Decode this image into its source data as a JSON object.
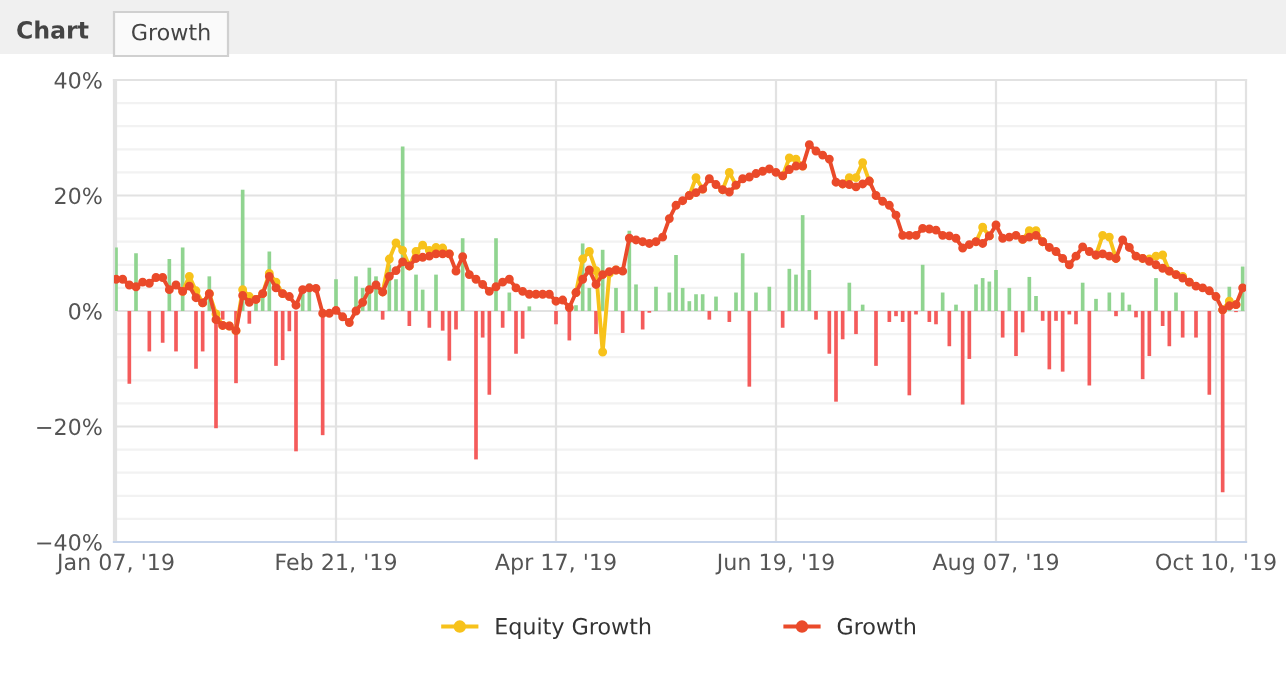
{
  "chart_data": {
    "type": "line",
    "annotations": [
      "Chart",
      "Growth"
    ],
    "categories": [
      "Jan 07, '19",
      null,
      null,
      null,
      null,
      null,
      null,
      null,
      null,
      null,
      null,
      null,
      null,
      null,
      null,
      null,
      null,
      null,
      null,
      null,
      null,
      null,
      null,
      null,
      null,
      null,
      null,
      null,
      null,
      null,
      null,
      null,
      null,
      "Feb 21, '19",
      null,
      null,
      null,
      null,
      null,
      null,
      null,
      null,
      null,
      null,
      null,
      null,
      null,
      null,
      null,
      null,
      null,
      null,
      null,
      null,
      null,
      null,
      null,
      null,
      null,
      null,
      null,
      null,
      null,
      null,
      null,
      null,
      "Apr 17, '19",
      null,
      null,
      null,
      null,
      null,
      null,
      null,
      null,
      null,
      null,
      null,
      null,
      null,
      null,
      null,
      null,
      null,
      null,
      null,
      null,
      null,
      null,
      null,
      null,
      null,
      null,
      null,
      null,
      null,
      null,
      null,
      null,
      "Jun 19, '19",
      null,
      null,
      null,
      null,
      null,
      null,
      null,
      null,
      null,
      null,
      null,
      null,
      null,
      null,
      null,
      null,
      null,
      null,
      null,
      null,
      null,
      null,
      null,
      null,
      null,
      null,
      null,
      null,
      null,
      null,
      null,
      null,
      "Aug 07, '19",
      null,
      null,
      null,
      null,
      null,
      null,
      null,
      null,
      null,
      null,
      null,
      null,
      null,
      null,
      null,
      null,
      null,
      null,
      null,
      null,
      null,
      null,
      null,
      null,
      null,
      null,
      null,
      null,
      null,
      null,
      null,
      null,
      "Oct 10, '19",
      null,
      null,
      null,
      null
    ],
    "series": [
      {
        "type": "bar",
        "color": "#90d490",
        "values": [
          11,
          null,
          null,
          10,
          null,
          null,
          null,
          null,
          9,
          null,
          11,
          null,
          null,
          null,
          6,
          null,
          null,
          null,
          null,
          21,
          null,
          2,
          3,
          10.3,
          null,
          null,
          null,
          null,
          3.5,
          4.8,
          null,
          null,
          null,
          5.5,
          null,
          null,
          6,
          4,
          7.5,
          6,
          null,
          8,
          5.5,
          28.5,
          null,
          6.3,
          3.7,
          null,
          6.3,
          null,
          null,
          null,
          12.6,
          null,
          null,
          null,
          null,
          12.6,
          null,
          3.2,
          null,
          null,
          0.8,
          null,
          null,
          null,
          null,
          null,
          null,
          1.0,
          11.7,
          4,
          null,
          10.6,
          null,
          4,
          null,
          13.9,
          4.6,
          null,
          null,
          4.2,
          null,
          3.2,
          9.7,
          4,
          1.7,
          2.9,
          2.9,
          null,
          2.5,
          null,
          null,
          3.2,
          10,
          null,
          3.2,
          null,
          4.2,
          null,
          null,
          7.3,
          6.3,
          16.6,
          7.1,
          null,
          null,
          null,
          null,
          null,
          4.9,
          null,
          1.1,
          null,
          null,
          null,
          null,
          null,
          null,
          null,
          null,
          8,
          null,
          null,
          3.2,
          null,
          1.1,
          null,
          null,
          4.6,
          5.7,
          5.1,
          7.1,
          null,
          4,
          null,
          null,
          5.9,
          2.6,
          null,
          null,
          null,
          null,
          null,
          null,
          4.9,
          null,
          2.1,
          null,
          3.2,
          null,
          3.2,
          1.1,
          null,
          null,
          null,
          5.7,
          null,
          null,
          3.2,
          null,
          null,
          null,
          null,
          null,
          null,
          null,
          4.2,
          null,
          7.7
        ]
      },
      {
        "type": "bar",
        "color": "#f45b5b",
        "values": [
          null,
          null,
          -12.6,
          null,
          null,
          -7,
          null,
          -5.5,
          null,
          -7,
          null,
          null,
          -10,
          -7,
          null,
          -20.3,
          -1.5,
          null,
          -12.5,
          null,
          -2.2,
          null,
          null,
          null,
          -9.5,
          -8.5,
          -3.5,
          -24.3,
          null,
          null,
          null,
          -21.5,
          null,
          null,
          null,
          null,
          null,
          null,
          null,
          null,
          -1.5,
          null,
          null,
          null,
          -2.6,
          null,
          null,
          -2.9,
          null,
          -3.4,
          -8.6,
          -3.2,
          null,
          null,
          -25.7,
          -4.6,
          -14.5,
          null,
          -2.9,
          null,
          -7.4,
          -4.8,
          null,
          null,
          null,
          null,
          -2.3,
          null,
          -5.1,
          null,
          null,
          null,
          -4,
          null,
          null,
          null,
          -3.8,
          null,
          null,
          -3.2,
          -0.3,
          null,
          null,
          null,
          null,
          null,
          null,
          null,
          null,
          -1.5,
          null,
          null,
          -1.9,
          null,
          null,
          -13.1,
          null,
          null,
          null,
          null,
          -2.9,
          null,
          null,
          null,
          null,
          -1.5,
          null,
          -7.4,
          -15.7,
          -4.9,
          null,
          -4,
          null,
          null,
          -9.5,
          null,
          -1.9,
          -0.9,
          -1.9,
          -14.6,
          -0.6,
          null,
          -1.9,
          -2.3,
          null,
          -6.1,
          null,
          -16.2,
          -8.3,
          null,
          null,
          null,
          null,
          -4.6,
          null,
          -7.8,
          -3.7,
          null,
          null,
          -1.7,
          -10.1,
          -1.7,
          -10.5,
          -0.6,
          -2.3,
          null,
          -12.9,
          null,
          null,
          null,
          -0.9,
          null,
          null,
          -1.1,
          -11.8,
          -7.8,
          null,
          -2.6,
          -6.1,
          null,
          -4.6,
          null,
          -4.6,
          null,
          -14.5,
          null,
          -31.4,
          null,
          -0.2,
          null
        ]
      },
      {
        "name": "Equity Growth",
        "color": "#f7c21b",
        "values": [
          null,
          null,
          null,
          null,
          null,
          null,
          null,
          null,
          null,
          null,
          3.4,
          6.0,
          3.5,
          1.4,
          3.0,
          -0.5,
          -2.5,
          -2.6,
          -3.4,
          3.7,
          2.5,
          2.0,
          3.0,
          6.5,
          5.0,
          3.0,
          null,
          null,
          null,
          null,
          null,
          null,
          null,
          null,
          null,
          null,
          null,
          null,
          null,
          null,
          3.3,
          9.0,
          11.8,
          10.5,
          7.8,
          10.3,
          11.4,
          10.5,
          11.0,
          10.9,
          9.9,
          null,
          null,
          null,
          null,
          null,
          null,
          null,
          null,
          null,
          null,
          null,
          null,
          null,
          null,
          null,
          null,
          null,
          null,
          3.2,
          9.0,
          10.3,
          7.0,
          -7.1,
          6.5,
          7.1,
          null,
          null,
          null,
          null,
          null,
          null,
          null,
          null,
          null,
          null,
          20.0,
          23.1,
          21.1,
          null,
          null,
          21.0,
          24.0,
          21.8,
          null,
          null,
          null,
          null,
          null,
          null,
          23.4,
          26.5,
          26.3,
          25.1,
          null,
          null,
          null,
          null,
          null,
          22.0,
          23.1,
          23.1,
          25.7,
          22.5,
          null,
          null,
          null,
          null,
          null,
          null,
          null,
          null,
          null,
          null,
          null,
          null,
          null,
          null,
          null,
          12.0,
          14.5,
          13.0,
          null,
          null,
          null,
          null,
          12.4,
          13.9,
          13.9,
          12.0,
          null,
          null,
          null,
          null,
          null,
          null,
          null,
          9.7,
          13.1,
          12.8,
          9.1,
          null,
          null,
          null,
          9.1,
          9.0,
          9.5,
          9.7,
          6.9,
          6.3,
          6.0,
          5.0,
          null,
          null,
          null,
          null,
          0.2,
          1.7,
          1.1,
          null
        ]
      },
      {
        "name": "Growth",
        "color": "#ea4a2a",
        "values": [
          5.5,
          5.5,
          4.5,
          4.2,
          5.0,
          4.8,
          5.8,
          5.8,
          3.7,
          4.5,
          3.4,
          4.3,
          2.3,
          1.4,
          3.0,
          -1.5,
          -2.5,
          -2.6,
          -3.4,
          2.7,
          1.5,
          2.0,
          3.0,
          6.0,
          4.0,
          3.0,
          2.5,
          1.0,
          3.7,
          4.0,
          3.9,
          -0.4,
          -0.4,
          0.1,
          -1.0,
          -2.0,
          0.0,
          1.5,
          3.7,
          4.5,
          3.3,
          6.0,
          7.0,
          8.5,
          7.8,
          9.1,
          9.3,
          9.5,
          9.9,
          9.9,
          9.9,
          6.9,
          9.4,
          6.3,
          5.5,
          4.6,
          3.4,
          4.2,
          5.0,
          5.5,
          4.0,
          3.4,
          2.9,
          2.9,
          2.9,
          2.9,
          1.7,
          1.9,
          0.6,
          3.2,
          5.5,
          7.1,
          4.6,
          6.3,
          6.8,
          7.1,
          6.9,
          12.6,
          12.3,
          12.0,
          11.7,
          12.0,
          12.8,
          16.0,
          18.3,
          19.1,
          20.0,
          20.5,
          21.1,
          22.9,
          21.9,
          21.0,
          20.6,
          21.8,
          22.9,
          23.2,
          23.8,
          24.2,
          24.6,
          24.0,
          23.4,
          24.5,
          25.1,
          25.1,
          28.8,
          27.7,
          27.0,
          26.3,
          22.3,
          22.0,
          21.9,
          21.5,
          22.0,
          22.5,
          20.0,
          19.0,
          18.3,
          16.6,
          13.1,
          13.1,
          13.1,
          14.3,
          14.2,
          14.0,
          13.1,
          13.0,
          12.6,
          10.9,
          11.5,
          12.0,
          11.7,
          13.0,
          14.9,
          12.6,
          12.8,
          13.1,
          12.4,
          12.8,
          13.1,
          12.0,
          11.0,
          10.3,
          9.1,
          8.0,
          9.5,
          11.1,
          10.3,
          9.7,
          9.9,
          9.5,
          9.1,
          12.3,
          11.0,
          9.5,
          9.1,
          8.6,
          8.0,
          7.4,
          6.9,
          6.3,
          5.7,
          5.0,
          4.3,
          4.0,
          3.5,
          2.5,
          0.2,
          0.9,
          1.1,
          4.0
        ]
      }
    ],
    "ylim": [
      -40,
      40
    ],
    "yticks": [
      {
        "value": -40,
        "label": "−40%"
      },
      {
        "value": -36,
        "label": null
      },
      {
        "value": -32,
        "label": null
      },
      {
        "value": -28,
        "label": null
      },
      {
        "value": -24,
        "label": null
      },
      {
        "value": -20,
        "label": "−20%"
      },
      {
        "value": -16,
        "label": null
      },
      {
        "value": -12,
        "label": null
      },
      {
        "value": -8,
        "label": null
      },
      {
        "value": -4,
        "label": null
      },
      {
        "value": 0,
        "label": "0%"
      },
      {
        "value": 4,
        "label": null
      },
      {
        "value": 8,
        "label": null
      },
      {
        "value": 12,
        "label": null
      },
      {
        "value": 16,
        "label": null
      },
      {
        "value": 20,
        "label": "20%"
      },
      {
        "value": 24,
        "label": null
      },
      {
        "value": 28,
        "label": null
      },
      {
        "value": 32,
        "label": null
      },
      {
        "value": 36,
        "label": null
      },
      {
        "value": 40,
        "label": "40%"
      }
    ],
    "grid": true,
    "legend": "bottom",
    "marker": "circle",
    "line_style": "solid"
  }
}
